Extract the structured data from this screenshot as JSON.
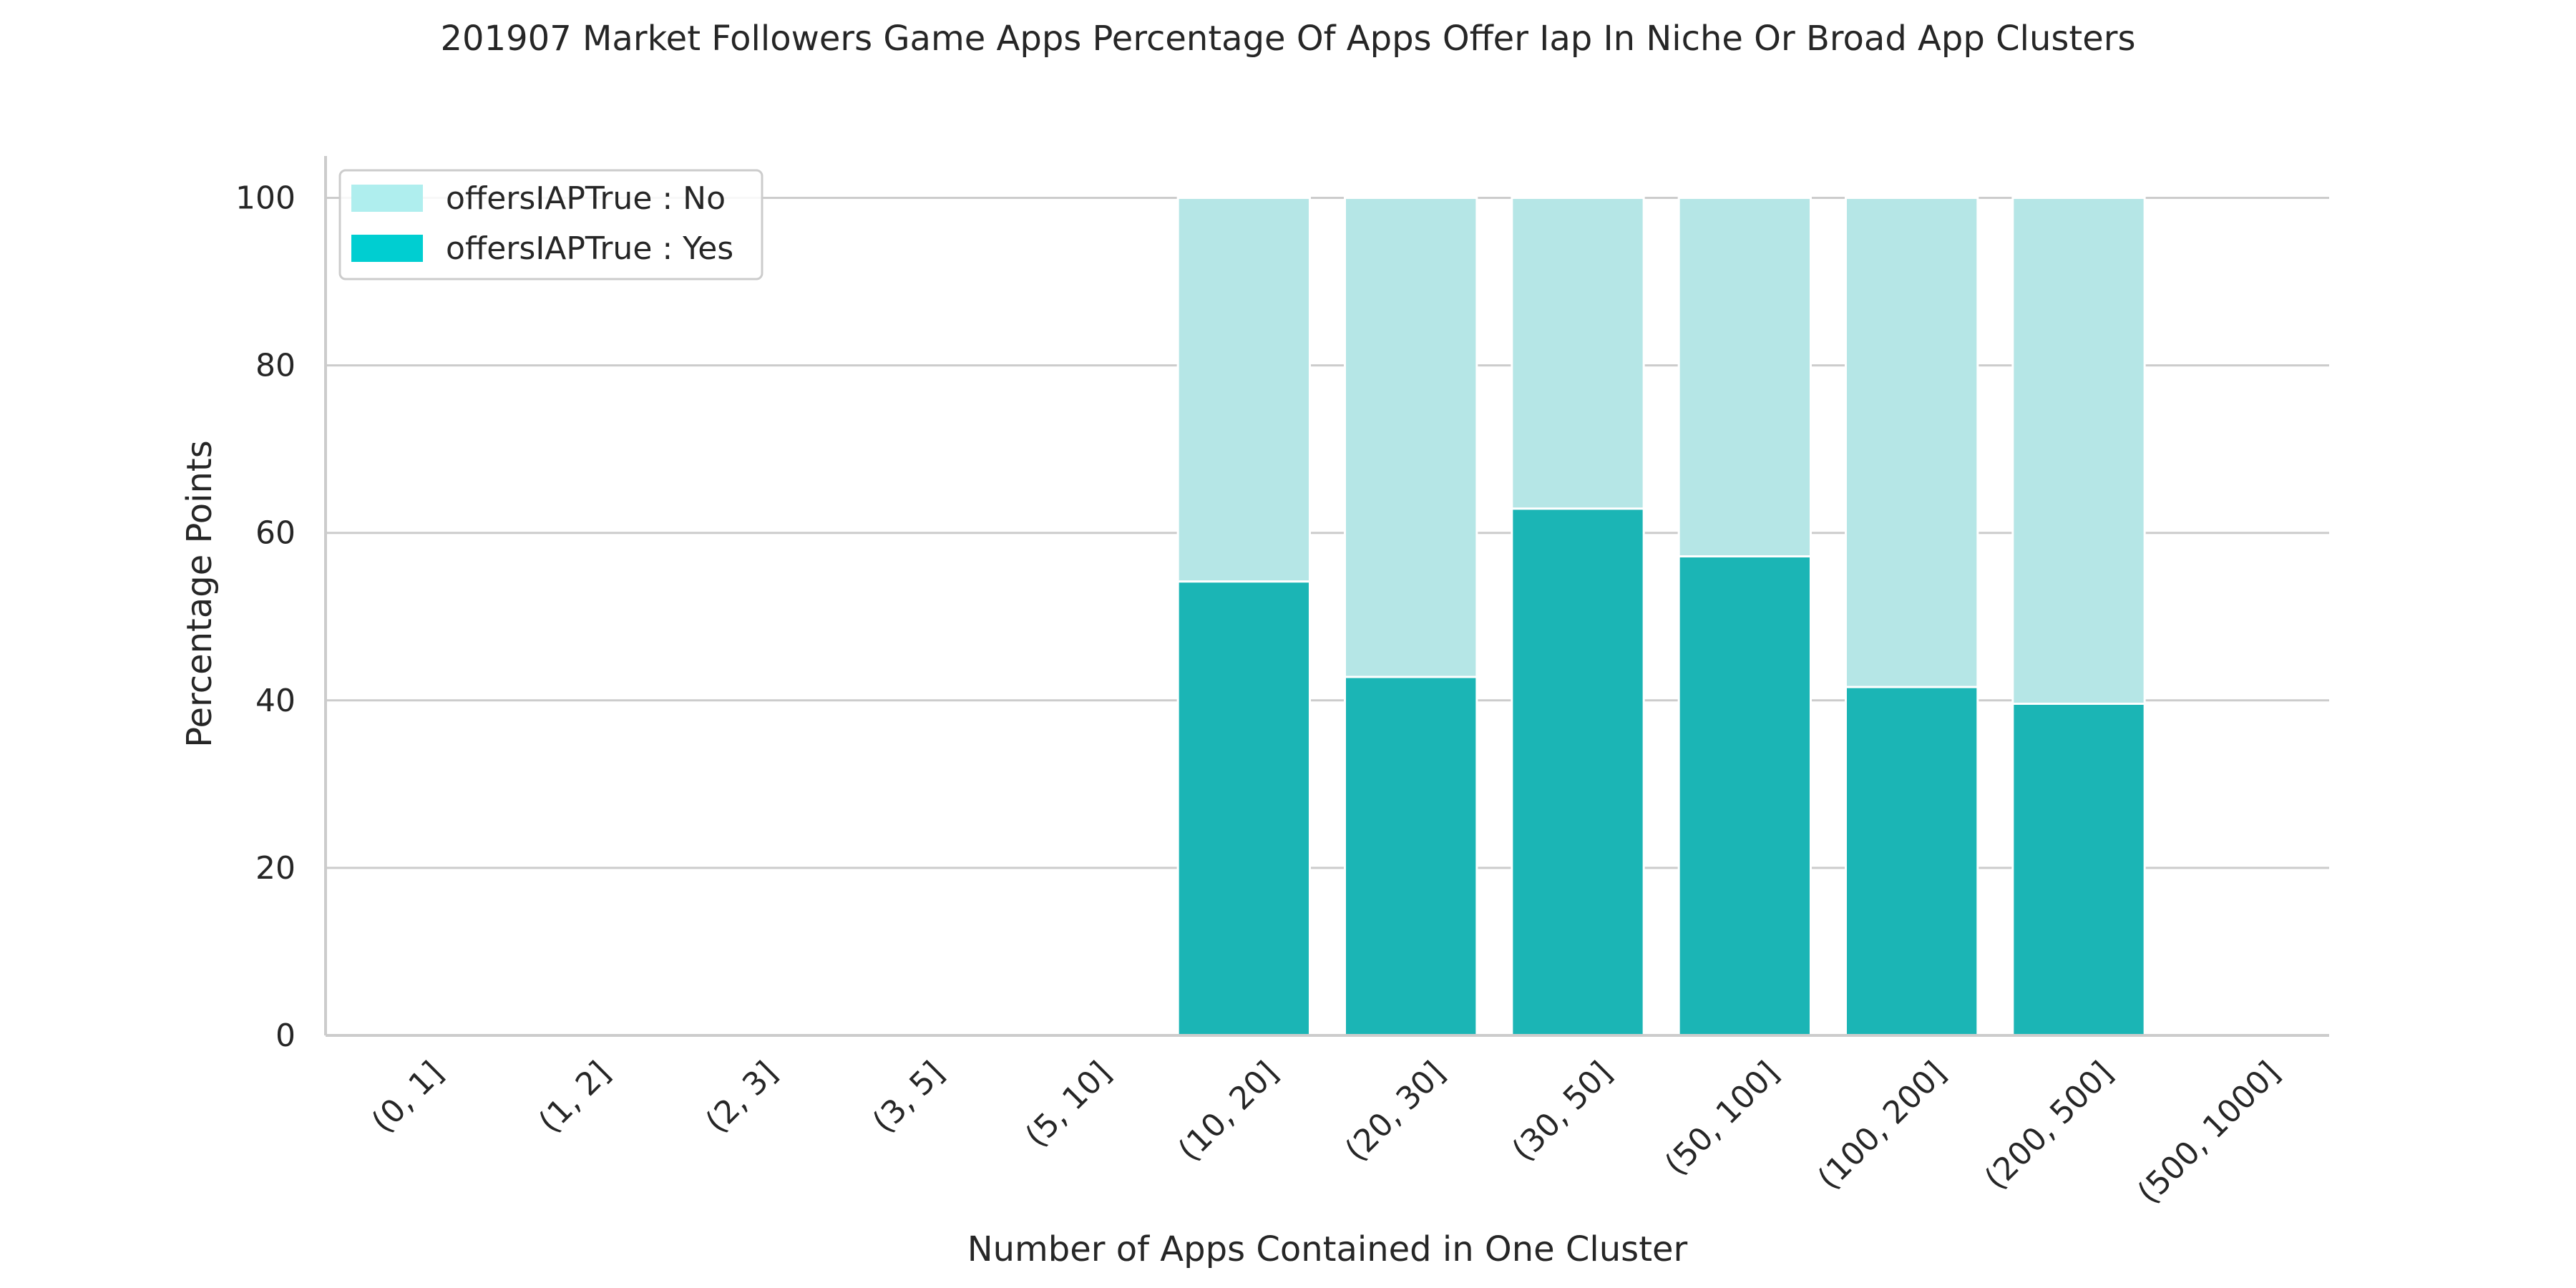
{
  "chart_data": {
    "type": "bar",
    "stacked": true,
    "title": "201907 Market Followers Game Apps Percentage Of Apps Offer Iap In Niche Or Broad App Clusters",
    "xlabel": "Number of Apps Contained in One Cluster",
    "ylabel": "Percentage Points",
    "ylim": [
      0,
      105
    ],
    "yticks": [
      0,
      20,
      40,
      60,
      80,
      100
    ],
    "grid": "horizontal",
    "legend_position": "top-left",
    "categories": [
      "(0, 1]",
      "(1, 2]",
      "(2, 3]",
      "(3, 5]",
      "(5, 10]",
      "(10, 20]",
      "(20, 30]",
      "(30, 50]",
      "(50, 100]",
      "(100, 200]",
      "(200, 500]",
      "(500, 1000]"
    ],
    "series": [
      {
        "name": "offersIAPTrue : Yes",
        "color": "#1bb5b5",
        "legend_color": "#00ced1",
        "values": [
          0,
          0,
          0,
          0,
          0,
          54.2,
          42.8,
          62.9,
          57.2,
          41.6,
          39.6,
          0
        ]
      },
      {
        "name": "offersIAPTrue : No",
        "color": "#b5e6e6",
        "legend_color": "#afeeee",
        "values": [
          0,
          0,
          0,
          0,
          0,
          45.8,
          57.2,
          37.1,
          42.8,
          58.4,
          60.4,
          0
        ]
      }
    ],
    "legend": [
      "offersIAPTrue : No",
      "offersIAPTrue : Yes"
    ]
  }
}
